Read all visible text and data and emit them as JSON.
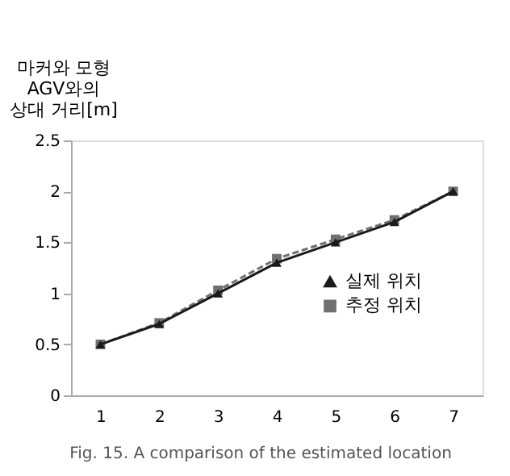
{
  "chart_data": {
    "type": "line",
    "ylabel": "마커와 모형\nAGV와의\n상대 거리[m]",
    "categories": [
      "1",
      "2",
      "3",
      "4",
      "5",
      "6",
      "7"
    ],
    "series": [
      {
        "name": "실제 위치",
        "color": "#1a1a1a",
        "values": [
          0.5,
          0.7,
          1.0,
          1.3,
          1.5,
          1.7,
          2.0
        ],
        "marker": "triangle",
        "line_style": "solid"
      },
      {
        "name": "추정 위치",
        "color": "#707070",
        "values": [
          0.5,
          0.71,
          1.03,
          1.34,
          1.53,
          1.72,
          2.0
        ],
        "marker": "square",
        "line_style": "dashed"
      }
    ],
    "ylim": [
      0,
      2.5
    ],
    "yticks": [
      0,
      0.5,
      1,
      1.5,
      2,
      2.5
    ],
    "grid": false,
    "legend": "right",
    "annotations": [
      "Fig. 15. A comparison of the estimated location"
    ]
  }
}
